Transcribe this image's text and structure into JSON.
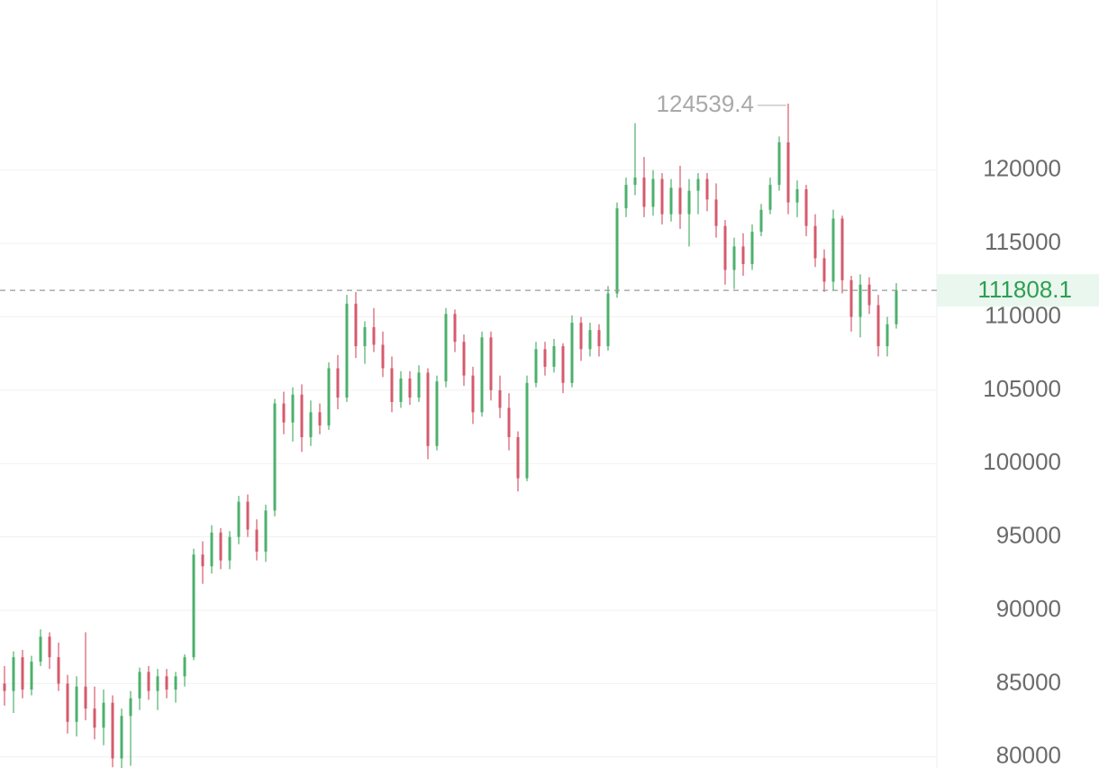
{
  "chart_data": {
    "type": "candlestick",
    "up_color": "#4cb06c",
    "down_color": "#d65a6c",
    "ylim": [
      79250,
      131600
    ],
    "yticks": [
      80000,
      85000,
      90000,
      95000,
      100000,
      105000,
      110000,
      115000,
      120000
    ],
    "grid": true,
    "candles": [
      [
        85000,
        86200,
        83500,
        84500
      ],
      [
        84500,
        87200,
        83000,
        86800
      ],
      [
        86800,
        87300,
        84000,
        84600
      ],
      [
        84600,
        86900,
        84200,
        86500
      ],
      [
        86500,
        88700,
        86200,
        88200
      ],
      [
        88200,
        88500,
        86000,
        86800
      ],
      [
        86800,
        87800,
        84500,
        85000
      ],
      [
        85000,
        85600,
        81600,
        82400
      ],
      [
        82400,
        85500,
        81400,
        84800
      ],
      [
        84800,
        88500,
        82500,
        83300
      ],
      [
        83300,
        84800,
        81200,
        82000
      ],
      [
        82000,
        84600,
        80800,
        83700
      ],
      [
        83700,
        84200,
        79300,
        79900
      ],
      [
        79900,
        83300,
        79200,
        82800
      ],
      [
        82800,
        84500,
        79400,
        84000
      ],
      [
        84000,
        86100,
        83200,
        85800
      ],
      [
        85800,
        86200,
        83900,
        84500
      ],
      [
        84500,
        86000,
        83200,
        85500
      ],
      [
        85500,
        86000,
        84000,
        84600
      ],
      [
        84600,
        85800,
        83700,
        85500
      ],
      [
        85500,
        87000,
        84800,
        86800
      ],
      [
        86800,
        94200,
        86600,
        93800
      ],
      [
        93800,
        94700,
        91800,
        93000
      ],
      [
        93000,
        95800,
        92500,
        95300
      ],
      [
        95300,
        95600,
        92800,
        93400
      ],
      [
        93400,
        95400,
        92800,
        95000
      ],
      [
        95000,
        97800,
        94500,
        97400
      ],
      [
        97400,
        97900,
        95000,
        95500
      ],
      [
        95500,
        96200,
        93400,
        94000
      ],
      [
        94000,
        97200,
        93300,
        96800
      ],
      [
        96800,
        104400,
        96400,
        104100
      ],
      [
        104100,
        104900,
        102000,
        102800
      ],
      [
        102800,
        105200,
        101500,
        104700
      ],
      [
        104700,
        105400,
        100800,
        101800
      ],
      [
        101800,
        104300,
        101200,
        103500
      ],
      [
        103500,
        104100,
        102000,
        102600
      ],
      [
        102600,
        106900,
        102300,
        106500
      ],
      [
        106500,
        107400,
        103700,
        104500
      ],
      [
        104500,
        111500,
        104200,
        110900
      ],
      [
        110900,
        111700,
        107200,
        108000
      ],
      [
        108000,
        109700,
        106800,
        109300
      ],
      [
        109300,
        110600,
        107600,
        108100
      ],
      [
        108100,
        109000,
        105900,
        106500
      ],
      [
        106500,
        107300,
        103500,
        104200
      ],
      [
        104200,
        106300,
        103800,
        105800
      ],
      [
        105800,
        106300,
        104000,
        104500
      ],
      [
        104500,
        106700,
        104200,
        106200
      ],
      [
        106200,
        106500,
        100300,
        101200
      ],
      [
        101200,
        106000,
        100900,
        105600
      ],
      [
        105600,
        110600,
        105200,
        110200
      ],
      [
        110200,
        110500,
        107600,
        108300
      ],
      [
        108300,
        108800,
        105300,
        106000
      ],
      [
        106000,
        106600,
        102700,
        103500
      ],
      [
        103500,
        109000,
        103200,
        108600
      ],
      [
        108600,
        109000,
        104300,
        105000
      ],
      [
        105000,
        106000,
        103100,
        103800
      ],
      [
        103800,
        104800,
        100900,
        101800
      ],
      [
        101800,
        102200,
        98100,
        99000
      ],
      [
        99000,
        106000,
        98800,
        105500
      ],
      [
        105500,
        108300,
        105200,
        107800
      ],
      [
        107800,
        108300,
        106000,
        106600
      ],
      [
        106600,
        108500,
        106200,
        108000
      ],
      [
        108000,
        108200,
        104800,
        105500
      ],
      [
        105500,
        110100,
        105200,
        109600
      ],
      [
        109600,
        110000,
        107000,
        107800
      ],
      [
        107800,
        109600,
        107300,
        109100
      ],
      [
        109100,
        109500,
        107300,
        108000
      ],
      [
        108000,
        112100,
        107700,
        111600
      ],
      [
        111600,
        117800,
        111300,
        117400
      ],
      [
        117400,
        119500,
        116800,
        119000
      ],
      [
        119000,
        123200,
        118300,
        119500
      ],
      [
        119500,
        120900,
        116800,
        117500
      ],
      [
        117500,
        120000,
        116900,
        119400
      ],
      [
        119400,
        119800,
        116300,
        117000
      ],
      [
        117000,
        119400,
        116500,
        118800
      ],
      [
        118800,
        120300,
        116000,
        117000
      ],
      [
        117000,
        119400,
        114800,
        118600
      ],
      [
        118600,
        119800,
        117000,
        119400
      ],
      [
        119400,
        119800,
        117200,
        118000
      ],
      [
        118000,
        119100,
        115400,
        116200
      ],
      [
        116200,
        116600,
        112200,
        113200
      ],
      [
        113200,
        115400,
        111900,
        114800
      ],
      [
        114800,
        115700,
        112800,
        113600
      ],
      [
        113600,
        116300,
        113200,
        115800
      ],
      [
        115800,
        117700,
        115500,
        117300
      ],
      [
        117300,
        119500,
        117000,
        119000
      ],
      [
        119000,
        122300,
        118600,
        121900
      ],
      [
        121900,
        124539.4,
        117000,
        117800
      ],
      [
        117800,
        119300,
        116800,
        118700
      ],
      [
        118700,
        119000,
        115500,
        116200
      ],
      [
        116200,
        117000,
        113400,
        114000
      ],
      [
        114000,
        114600,
        111700,
        112400
      ],
      [
        112400,
        117300,
        111800,
        116700
      ],
      [
        116700,
        116900,
        111600,
        112500
      ],
      [
        112500,
        112800,
        109000,
        110000
      ],
      [
        110000,
        112900,
        108600,
        112200
      ],
      [
        112200,
        112700,
        110200,
        110800
      ],
      [
        110800,
        111500,
        107300,
        108000
      ],
      [
        108000,
        110000,
        107300,
        109500
      ],
      [
        109500,
        112300,
        109200,
        111808.1
      ]
    ]
  }
}
